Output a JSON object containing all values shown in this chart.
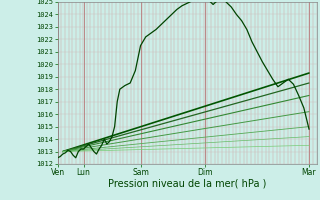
{
  "xlabel": "Pression niveau de la mer( hPa )",
  "ylim": [
    1012,
    1025
  ],
  "yticks": [
    1012,
    1013,
    1014,
    1015,
    1016,
    1017,
    1018,
    1019,
    1020,
    1021,
    1022,
    1023,
    1024,
    1025
  ],
  "xtick_labels": [
    "Ven",
    "Lun",
    "Sam",
    "Dim",
    "Mar"
  ],
  "xtick_positions": [
    0.0,
    0.1,
    0.32,
    0.57,
    0.97
  ],
  "bg_color": "#cceee8",
  "main_line_color": "#004400",
  "main_x": [
    0.0,
    0.01,
    0.02,
    0.03,
    0.04,
    0.05,
    0.06,
    0.07,
    0.08,
    0.09,
    0.1,
    0.11,
    0.12,
    0.13,
    0.14,
    0.15,
    0.16,
    0.17,
    0.18,
    0.19,
    0.2,
    0.21,
    0.22,
    0.23,
    0.24,
    0.26,
    0.28,
    0.3,
    0.32,
    0.34,
    0.36,
    0.38,
    0.4,
    0.42,
    0.44,
    0.46,
    0.48,
    0.5,
    0.52,
    0.54,
    0.56,
    0.57,
    0.58,
    0.59,
    0.6,
    0.61,
    0.62,
    0.63,
    0.64,
    0.65,
    0.67,
    0.69,
    0.71,
    0.73,
    0.75,
    0.77,
    0.79,
    0.81,
    0.83,
    0.85,
    0.87,
    0.89,
    0.91,
    0.93,
    0.95,
    0.97
  ],
  "main_y": [
    1012.5,
    1012.6,
    1012.8,
    1012.9,
    1013.1,
    1013.0,
    1012.7,
    1012.5,
    1013.0,
    1013.2,
    1013.2,
    1013.4,
    1013.6,
    1013.3,
    1013.0,
    1012.8,
    1013.2,
    1013.5,
    1014.0,
    1013.6,
    1013.8,
    1014.2,
    1015.0,
    1017.0,
    1018.0,
    1018.3,
    1018.5,
    1019.5,
    1021.5,
    1022.2,
    1022.5,
    1022.8,
    1023.2,
    1023.6,
    1024.0,
    1024.4,
    1024.7,
    1024.9,
    1025.1,
    1025.2,
    1025.3,
    1025.4,
    1025.2,
    1025.0,
    1024.8,
    1025.0,
    1025.1,
    1025.2,
    1025.3,
    1025.0,
    1024.6,
    1024.0,
    1023.5,
    1022.8,
    1021.8,
    1021.0,
    1020.2,
    1019.5,
    1018.8,
    1018.2,
    1018.5,
    1018.8,
    1018.4,
    1017.5,
    1016.5,
    1014.8
  ],
  "forecast_lines": [
    {
      "x0": 0.02,
      "y0": 1013.0,
      "x1": 0.97,
      "y1": 1019.3,
      "lw": 1.2,
      "color": "#005500"
    },
    {
      "x0": 0.02,
      "y0": 1013.0,
      "x1": 0.97,
      "y1": 1018.5,
      "lw": 0.9,
      "color": "#226622"
    },
    {
      "x0": 0.02,
      "y0": 1013.0,
      "x1": 0.97,
      "y1": 1017.5,
      "lw": 0.8,
      "color": "#338833"
    },
    {
      "x0": 0.02,
      "y0": 1013.0,
      "x1": 0.97,
      "y1": 1016.2,
      "lw": 0.7,
      "color": "#449944"
    },
    {
      "x0": 0.02,
      "y0": 1013.0,
      "x1": 0.97,
      "y1": 1015.0,
      "lw": 0.6,
      "color": "#55aa55"
    },
    {
      "x0": 0.02,
      "y0": 1013.0,
      "x1": 0.97,
      "y1": 1014.2,
      "lw": 0.5,
      "color": "#66bb66"
    },
    {
      "x0": 0.02,
      "y0": 1013.0,
      "x1": 0.97,
      "y1": 1013.5,
      "lw": 0.5,
      "color": "#77cc77"
    }
  ],
  "vline_color": "#cc9999",
  "vline_major_color": "#bb8888",
  "hline_color": "#ccbbbb",
  "n_vgrid": 72
}
